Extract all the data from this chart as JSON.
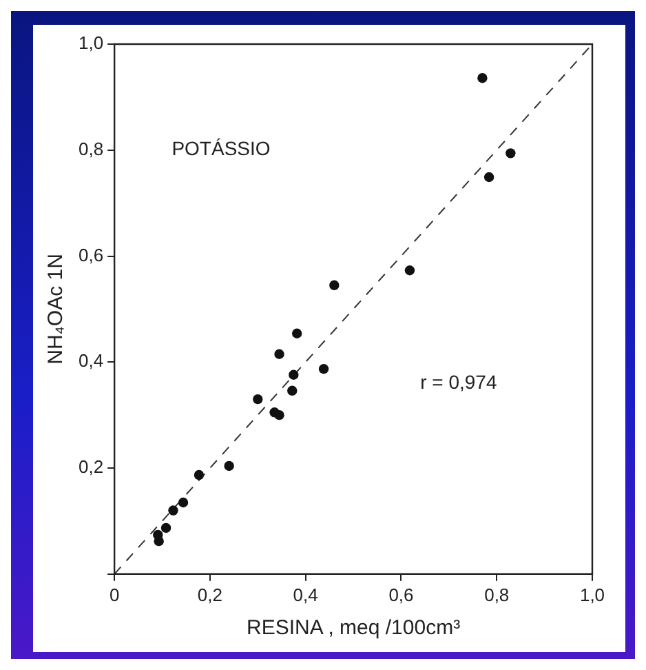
{
  "chart_data": {
    "type": "scatter",
    "xlabel": "RESINA , meq /100cm³",
    "ylabel": "NH₄OAc 1N",
    "annotations": [
      "POTÁSSIO",
      "r = 0,974"
    ],
    "series": [
      {
        "color": "#111111",
        "marker": "circle",
        "x": [
          0.091,
          0.093,
          0.108,
          0.123,
          0.144,
          0.177,
          0.24,
          0.3,
          0.335,
          0.345,
          0.345,
          0.372,
          0.375,
          0.382,
          0.438,
          0.46,
          0.618,
          0.77,
          0.784,
          0.829
        ],
        "values": [
          0.074,
          0.062,
          0.087,
          0.12,
          0.135,
          0.187,
          0.204,
          0.33,
          0.305,
          0.3,
          0.415,
          0.346,
          0.376,
          0.454,
          0.387,
          0.545,
          0.573,
          0.936,
          0.749,
          0.794
        ]
      },
      {
        "type": "line",
        "color": "#333333",
        "marker": "none",
        "line_style": "dashed",
        "x": [
          0,
          1
        ],
        "values": [
          0,
          1
        ]
      }
    ],
    "xlim": [
      0,
      1
    ],
    "ylim": [
      0,
      1
    ],
    "xticks": [
      {
        "value": 0,
        "label": "0"
      },
      {
        "value": 0.2,
        "label": "0,2"
      },
      {
        "value": 0.4,
        "label": "0,4"
      },
      {
        "value": 0.6,
        "label": "0,6"
      },
      {
        "value": 0.8,
        "label": "0,8"
      },
      {
        "value": 1,
        "label": "1,0"
      }
    ],
    "yticks": [
      {
        "value": 0,
        "label": null
      },
      {
        "value": 0.2,
        "label": "0,2"
      },
      {
        "value": 0.4,
        "label": "0,4"
      },
      {
        "value": 0.6,
        "label": "0,6"
      },
      {
        "value": 0.8,
        "label": "0,8"
      },
      {
        "value": 1,
        "label": "1,0"
      }
    ],
    "grid": false,
    "legend": false
  }
}
